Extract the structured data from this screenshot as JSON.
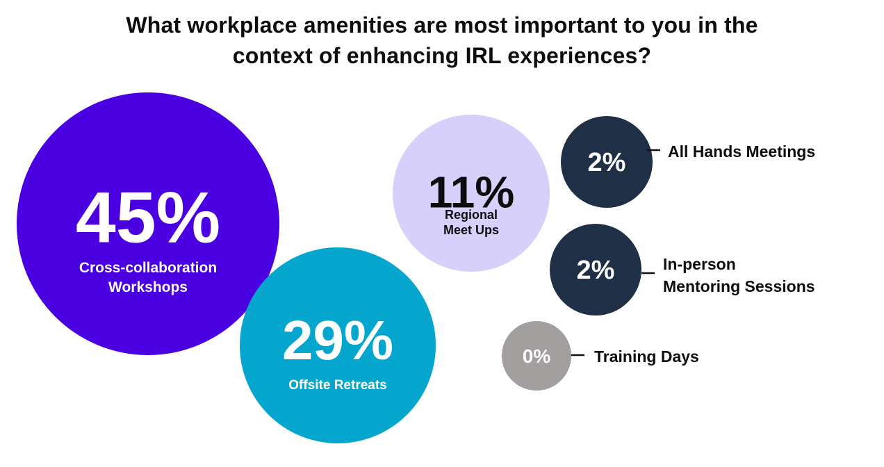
{
  "chart_data": {
    "type": "bubble",
    "title_lines": [
      "What workplace amenities are most important to you in the",
      "context of enhancing IRL experiences?"
    ],
    "unit": "%",
    "items": [
      {
        "value": 45,
        "value_label": "45%",
        "label_lines": [
          "Cross-collaboration",
          "Workshops"
        ],
        "color": "#4a00e0",
        "text_color": "#ffffff",
        "label_position": "inside"
      },
      {
        "value": 29,
        "value_label": "29%",
        "label_lines": [
          "Offsite Retreats"
        ],
        "color": "#05a6cd",
        "text_color": "#ffffff",
        "label_position": "inside"
      },
      {
        "value": 11,
        "value_label": "11%",
        "label_lines": [
          "Regional",
          "Meet Ups"
        ],
        "color": "#d6d0fb",
        "text_color": "#0d0d0d",
        "label_position": "inside"
      },
      {
        "value": 2,
        "value_label": "2%",
        "label_lines": [
          "All Hands Meetings"
        ],
        "color": "#1f2f45",
        "text_color": "#ffffff",
        "label_position": "right"
      },
      {
        "value": 2,
        "value_label": "2%",
        "label_lines": [
          "In-person",
          "Mentoring Sessions"
        ],
        "color": "#1f2f45",
        "text_color": "#ffffff",
        "label_position": "right"
      },
      {
        "value": 0,
        "value_label": "0%",
        "label_lines": [
          "Training Days"
        ],
        "color": "#a19e9d",
        "text_color": "#ffffff",
        "label_position": "right"
      }
    ]
  }
}
